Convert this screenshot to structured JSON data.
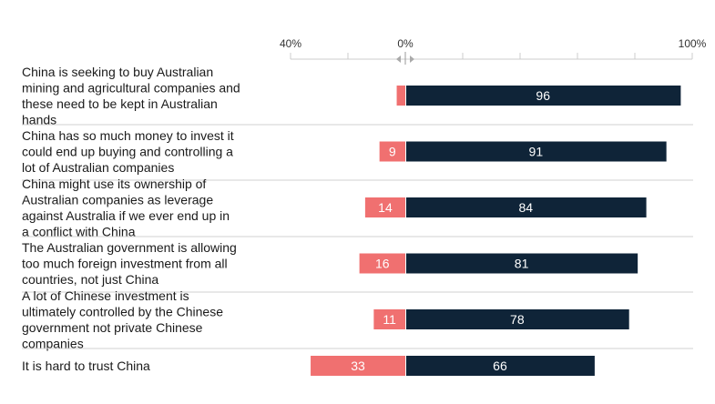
{
  "colors": {
    "disagree": "#f07070",
    "agree": "#0f2438",
    "axis": "#cccccc",
    "divider": "#d0d0d0",
    "text": "#1a1a1a"
  },
  "chart_data": {
    "type": "bar",
    "orientation": "horizontal-diverging",
    "title": "",
    "xlabel": "",
    "ylabel": "",
    "xlim": [
      -40,
      100
    ],
    "axis_ticks": [
      {
        "value": -40,
        "label": "40%"
      },
      {
        "value": 0,
        "label": "0%"
      },
      {
        "value": 100,
        "label": "100%"
      }
    ],
    "minor_ticks": [
      -20,
      20,
      40,
      60,
      80
    ],
    "grid": false,
    "legend": "none",
    "categories": [
      "China is seeking to buy Australian mining and agricultural companies and these need to be kept in Australian hands",
      "China has so much money to invest it could end up buying and controlling a lot of Australian companies",
      "China might use its ownership of Australian companies as leverage against Australia if we ever end up in a conflict with China",
      "The Australian government is allowing too much foreign investment from all countries, not just China",
      "A lot of Chinese investment is ultimately controlled by the Chinese government not private Chinese companies",
      "It is hard to trust China"
    ],
    "series": [
      {
        "values": [
          3,
          9,
          14,
          16,
          11,
          33
        ],
        "value_labels": [
          "",
          "9",
          "14",
          "16",
          "11",
          "33"
        ],
        "direction": "negative"
      },
      {
        "values": [
          96,
          91,
          84,
          81,
          78,
          66
        ],
        "value_labels": [
          "96",
          "91",
          "84",
          "81",
          "78",
          "66"
        ],
        "direction": "positive"
      }
    ]
  }
}
